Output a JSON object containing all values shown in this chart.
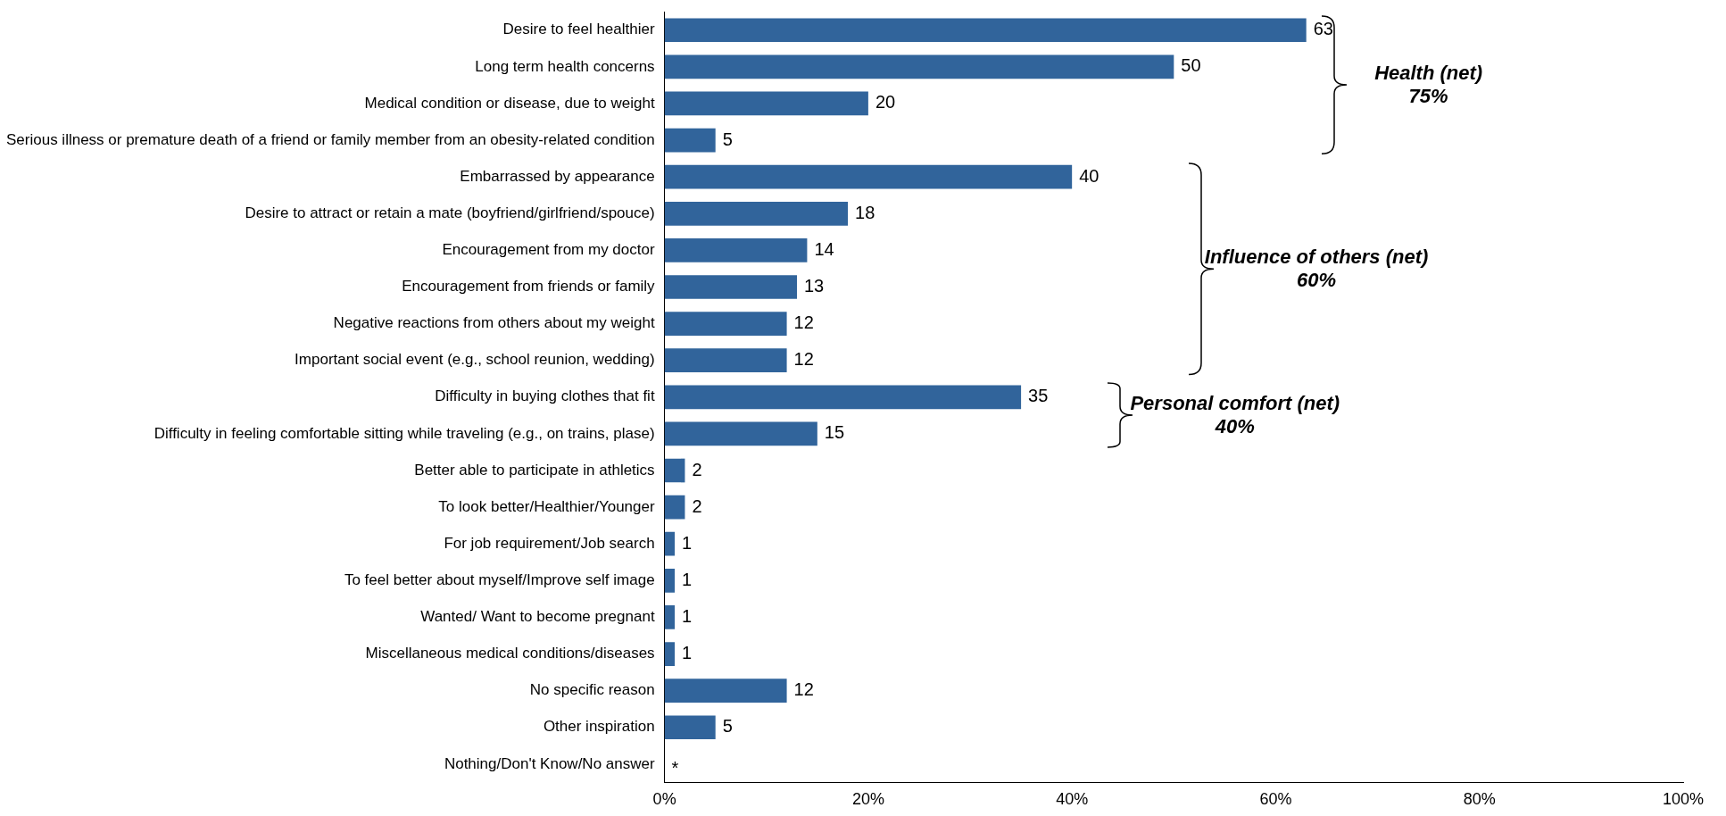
{
  "chart_data": {
    "type": "bar",
    "orientation": "horizontal",
    "categories": [
      "Desire to feel healthier",
      "Long term health concerns",
      "Medical condition or disease, due to weight",
      "Serious illness or premature death of a friend or family member from an obesity-related condition",
      "Embarrassed by appearance",
      "Desire to attract or retain a mate (boyfriend/girlfriend/spouce)",
      "Encouragement from my doctor",
      "Encouragement from friends or family",
      "Negative reactions from others about my weight",
      "Important social event (e.g., school reunion, wedding)",
      "Difficulty in buying clothes that fit",
      "Difficulty in feeling comfortable sitting while traveling (e.g., on trains, plase)",
      "Better able to participate in athletics",
      "To look better/Healthier/Younger",
      "For job requirement/Job search",
      "To feel better about myself/Improve self image",
      "Wanted/ Want to become pregnant",
      "Miscellaneous medical conditions/diseases",
      "No specific reason",
      "Other inspiration",
      "Nothing/Don't Know/No answer"
    ],
    "values": [
      63,
      50,
      20,
      5,
      40,
      18,
      14,
      13,
      12,
      12,
      35,
      15,
      2,
      2,
      1,
      1,
      1,
      1,
      12,
      5,
      0
    ],
    "value_labels": [
      "63",
      "50",
      "20",
      "5",
      "40",
      "18",
      "14",
      "13",
      "12",
      "12",
      "35",
      "15",
      "2",
      "2",
      "1",
      "1",
      "1",
      "1",
      "12",
      "5",
      "*"
    ],
    "color": "#31649b",
    "xlim": [
      0,
      100
    ],
    "xticks": [
      {
        "value": 0,
        "label": "0%"
      },
      {
        "value": 20,
        "label": "20%"
      },
      {
        "value": 40,
        "label": "40%"
      },
      {
        "value": 60,
        "label": "60%"
      },
      {
        "value": 80,
        "label": "80%"
      },
      {
        "value": 100,
        "label": "100%"
      }
    ],
    "annotations": [
      "Health (net)\n75%",
      "Influence of others (net)\n60%",
      "Personal comfort (net)\n40%"
    ],
    "grid": false,
    "legend": false
  }
}
